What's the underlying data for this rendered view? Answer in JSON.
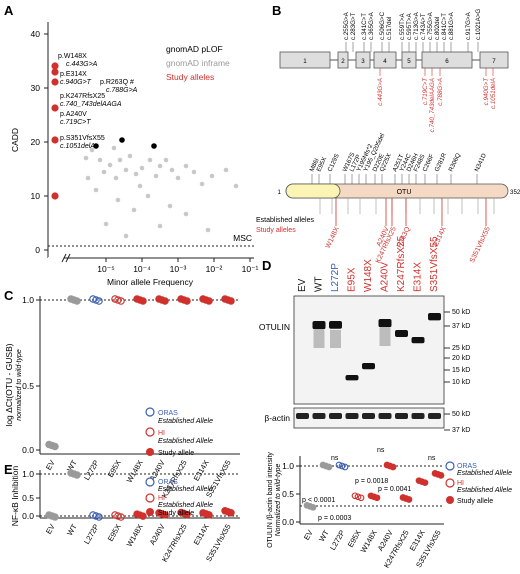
{
  "panels": {
    "A": "A",
    "B": "B",
    "C": "C",
    "D": "D",
    "E": "E"
  },
  "colors": {
    "study": "#d0312d",
    "established_blue": "#3a5fb5",
    "gnomad_inframe": "#bdbdbd",
    "gnomad_plof": "#000000"
  },
  "panelA": {
    "ylabel": "CADD",
    "xlabel": "Minor allele Frequency",
    "msc": "MSC",
    "yticks": [
      "0",
      "10",
      "20",
      "30",
      "40"
    ],
    "xticks": [
      "10⁻⁵",
      "10⁻⁴",
      "10⁻³",
      "10⁻²",
      "10⁻¹"
    ],
    "legend": [
      "gnomAD pLOF",
      "gnomAD inframe",
      "Study alleles"
    ],
    "labels": {
      "w148x": "p.W148X",
      "w148x_c": "c.443G>A",
      "e314x": "p.E314X",
      "e314x_c": "c.940G>T",
      "r263q": "p.R263Q #",
      "r263q_c": "c.788G>A",
      "k247": "p.K247RfsX25",
      "k247_c": "c.740_743delAAGA",
      "a240v": "p.A240V",
      "a240v_c": "c.719C>T",
      "s351": "p.S351VfsX55",
      "s351_c": "c.1051delA"
    }
  },
  "panelB": {
    "exons": [
      "1",
      "2",
      "3",
      "4",
      "5",
      "6",
      "7"
    ],
    "cdna_top": [
      "c.255G>A",
      "c.283G>T",
      "c.341C>T",
      "c.365G>A",
      "c.506G>C",
      "c.517del",
      "c.559T>A",
      "c.595T>A",
      "c.713G>A",
      "c.743A>T",
      "c.755G>A",
      "c.802del",
      "c.841C>T",
      "c.881G>A",
      "c.917G>A",
      "c.1021A>G"
    ],
    "cdna_red": [
      "c.443G>A",
      "c.719C>T",
      "c.740_743delAAGA",
      "c.788G>A",
      "c.940G>T",
      "c.1051delA"
    ],
    "prot_top": [
      "M86I",
      "E95X",
      "C129S",
      "W167S",
      "L172P",
      "Y195Nfs*2",
      "Y195_Q205del",
      "D220E",
      "Q225X",
      "A251T",
      "Y244C",
      "D246H",
      "F248S",
      "C266F",
      "G281R",
      "R306Q",
      "N341D"
    ],
    "domain": "OTU",
    "start": "1",
    "end": "352",
    "legend_est": "Established alleles",
    "legend_study": "Study alleles",
    "prot_red": [
      "W148X",
      "A240V",
      "K247RfsX25",
      "R263Q",
      "E314X",
      "S351VfsX55"
    ]
  },
  "panelC": {
    "ylabel": "log ΔCt(OTU - GUSB)",
    "ylabel2": "normalized to wild-type",
    "yticks": [
      "0.0",
      "0.5",
      "1.0"
    ],
    "cats": [
      "EV",
      "WT",
      "L272P",
      "E95X",
      "W148X",
      "A240V",
      "K247RfsX25",
      "E314X",
      "S351VfsX55"
    ],
    "values": [
      0.03,
      1.0,
      1.0,
      1.0,
      1.0,
      1.0,
      1.0,
      1.0,
      1.0
    ],
    "legend": [
      "ORAS",
      "Established Allele",
      "HI",
      "Established Allele",
      "Study allele"
    ]
  },
  "panelD": {
    "lanes": [
      "EV",
      "WT",
      "L272P",
      "E95X",
      "W148X",
      "A240V",
      "K247RfsX25",
      "E314X",
      "S351VfsX55"
    ],
    "otulin": "OTULIN",
    "actin": "β-actin",
    "mw": [
      "50 kD",
      "37 kD",
      "25 kD",
      "20 kD",
      "15 kD",
      "10 kD",
      "50 kD",
      "37 kD"
    ]
  },
  "panelE": {
    "ylabel": "NF-κB Inhibition",
    "yticks": [
      "0.0",
      "0.5",
      "1.0"
    ],
    "cats": [
      "EV",
      "WT",
      "L272P",
      "E95X",
      "W148X",
      "A240V",
      "K247RfsX25",
      "E314X",
      "S351VfsX55"
    ],
    "values": [
      0.0,
      1.0,
      0.0,
      0.0,
      0.02,
      0.05,
      0.06,
      0.05,
      0.1
    ],
    "legend": [
      "ORAS",
      "Established Allele",
      "HI",
      "Established Allele",
      "Study allele"
    ]
  },
  "panelF": {
    "ylabel": "OTULIN /β-actin band intensity",
    "ylabel2": "Normalized to wild-type",
    "yticks": [
      "0.0",
      "0.5",
      "1.0"
    ],
    "cats": [
      "EV",
      "WT",
      "L272P",
      "E95X",
      "W148X",
      "A240V",
      "K247RfsX25",
      "E314X",
      "S351VfsX55"
    ],
    "values": [
      0.28,
      1.0,
      1.0,
      0.45,
      0.45,
      1.0,
      0.42,
      0.72,
      0.85
    ],
    "stats": [
      "p < 0.0001",
      "ns",
      "p = 0.0003",
      "p = 0.0018",
      "ns",
      "p = 0.0041",
      "ns"
    ],
    "legend": [
      "ORAS",
      "Established Allele",
      "HI",
      "Established Allele",
      "Study allele"
    ]
  }
}
